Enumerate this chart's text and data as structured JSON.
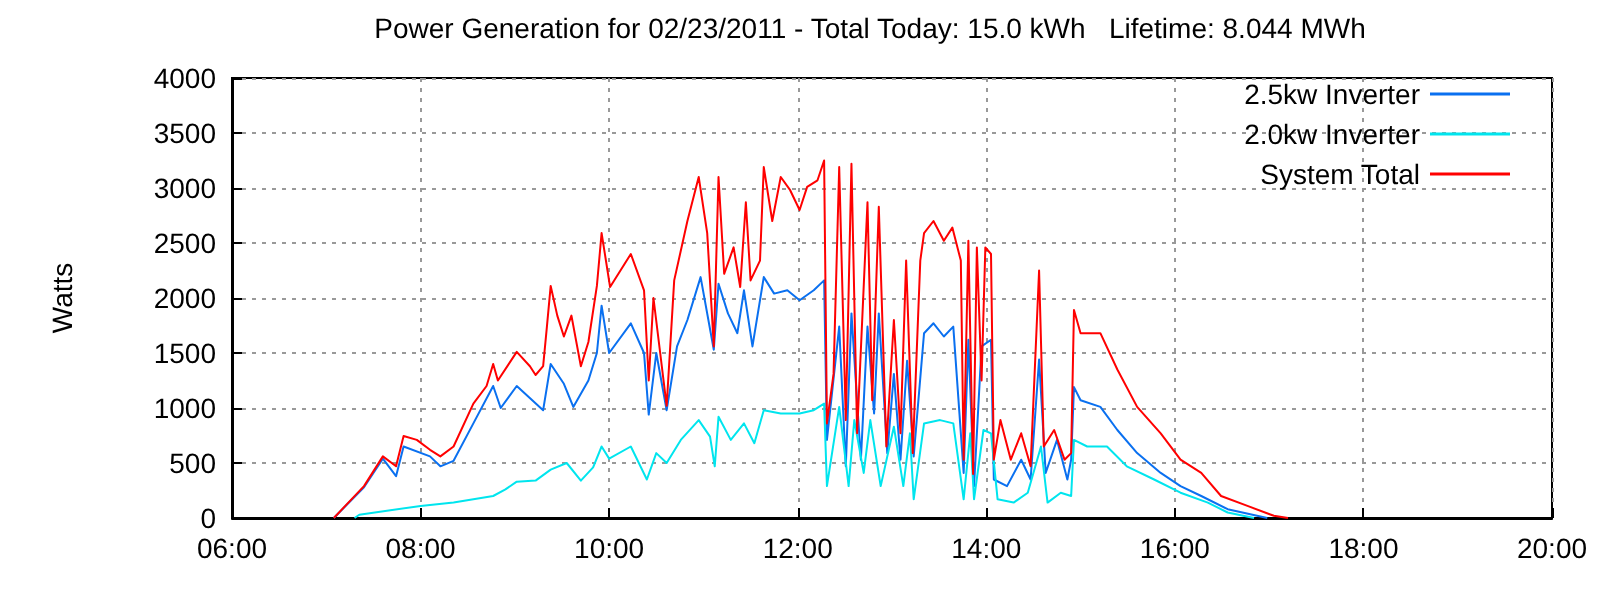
{
  "chart_data": {
    "type": "line",
    "title": "Power Generation for 02/23/2011 - Total Today: 15.0 kWh   Lifetime: 8.044 MWh",
    "ylabel": "Watts",
    "xlim": [
      6,
      20
    ],
    "xticks": [
      {
        "value": 6,
        "label": "06:00"
      },
      {
        "value": 8,
        "label": "08:00"
      },
      {
        "value": 10,
        "label": "10:00"
      },
      {
        "value": 12,
        "label": "12:00"
      },
      {
        "value": 14,
        "label": "14:00"
      },
      {
        "value": 16,
        "label": "16:00"
      },
      {
        "value": 18,
        "label": "18:00"
      },
      {
        "value": 20,
        "label": "20:00"
      }
    ],
    "ylim": [
      0,
      4000
    ],
    "yticks": [
      0,
      500,
      1000,
      1500,
      2000,
      2500,
      3000,
      3500,
      4000
    ],
    "grid": true,
    "legend": "top right",
    "marker": "none",
    "series": [
      {
        "name": "2.5kw Inverter",
        "color": "#0a70f0",
        "x": [
          7.08,
          7.4,
          7.6,
          7.74,
          7.82,
          8.1,
          8.21,
          8.35,
          8.56,
          8.77,
          8.85,
          9.02,
          9.3,
          9.38,
          9.52,
          9.62,
          9.78,
          9.87,
          9.92,
          10.0,
          10.23,
          10.37,
          10.42,
          10.5,
          10.61,
          10.72,
          10.83,
          10.97,
          11.11,
          11.16,
          11.26,
          11.36,
          11.43,
          11.52,
          11.64,
          11.75,
          11.89,
          12.02,
          12.17,
          12.28,
          12.31,
          12.44,
          12.51,
          12.57,
          12.67,
          12.74,
          12.81,
          12.86,
          12.95,
          13.02,
          13.09,
          13.16,
          13.23,
          13.34,
          13.44,
          13.55,
          13.65,
          13.76,
          13.81,
          13.87,
          13.95,
          14.05,
          14.08,
          14.22,
          14.37,
          14.47,
          14.56,
          14.63,
          14.75,
          14.86,
          14.9,
          14.93,
          15.0,
          15.21,
          15.39,
          15.6,
          15.85,
          16.06,
          16.28,
          16.56,
          16.98
        ],
        "values": [
          0,
          280,
          540,
          380,
          650,
          560,
          470,
          520,
          860,
          1200,
          1000,
          1200,
          980,
          1400,
          1220,
          1010,
          1250,
          1500,
          1930,
          1500,
          1770,
          1500,
          940,
          1500,
          980,
          1560,
          1800,
          2190,
          1530,
          2130,
          1860,
          1680,
          2070,
          1560,
          2190,
          2040,
          2070,
          1980,
          2070,
          2160,
          710,
          1740,
          470,
          1860,
          530,
          1740,
          950,
          1860,
          590,
          1310,
          530,
          1430,
          560,
          1680,
          1770,
          1650,
          1740,
          410,
          1620,
          290,
          1560,
          1620,
          350,
          290,
          530,
          350,
          1440,
          410,
          710,
          350,
          530,
          1190,
          1070,
          1010,
          800,
          590,
          410,
          290,
          200,
          80,
          0
        ]
      },
      {
        "name": "2.0kw Inverter",
        "color": "#00e5ee",
        "x": [
          7.3,
          7.35,
          8.0,
          8.35,
          8.77,
          8.9,
          9.02,
          9.22,
          9.38,
          9.55,
          9.7,
          9.83,
          9.92,
          10.0,
          10.23,
          10.4,
          10.5,
          10.61,
          10.76,
          10.95,
          11.07,
          11.12,
          11.16,
          11.29,
          11.43,
          11.54,
          11.64,
          11.82,
          12.02,
          12.17,
          12.28,
          12.31,
          12.44,
          12.54,
          12.6,
          12.7,
          12.77,
          12.88,
          13.02,
          13.12,
          13.19,
          13.23,
          13.34,
          13.51,
          13.65,
          13.76,
          13.83,
          13.87,
          13.97,
          14.05,
          14.12,
          14.29,
          14.44,
          14.58,
          14.65,
          14.79,
          14.9,
          14.93,
          15.07,
          15.28,
          15.49,
          15.78,
          16.06,
          16.35,
          16.56,
          16.84
        ],
        "values": [
          0,
          30,
          110,
          140,
          200,
          260,
          330,
          340,
          440,
          500,
          340,
          460,
          650,
          540,
          650,
          350,
          590,
          500,
          710,
          890,
          740,
          470,
          920,
          710,
          860,
          680,
          980,
          950,
          950,
          980,
          1040,
          290,
          1010,
          290,
          890,
          410,
          890,
          290,
          830,
          290,
          770,
          170,
          860,
          890,
          860,
          170,
          770,
          170,
          800,
          770,
          170,
          140,
          230,
          650,
          140,
          230,
          200,
          710,
          650,
          650,
          470,
          350,
          230,
          140,
          50,
          0
        ]
      },
      {
        "name": "System Total",
        "color": "#ff0000",
        "x": [
          7.08,
          7.4,
          7.6,
          7.74,
          7.82,
          7.96,
          8.1,
          8.21,
          8.35,
          8.56,
          8.7,
          8.77,
          8.82,
          9.02,
          9.16,
          9.22,
          9.3,
          9.34,
          9.38,
          9.45,
          9.52,
          9.6,
          9.7,
          9.78,
          9.87,
          9.92,
          10.01,
          10.23,
          10.37,
          10.42,
          10.47,
          10.61,
          10.69,
          10.83,
          10.95,
          11.04,
          11.11,
          11.16,
          11.22,
          11.32,
          11.39,
          11.45,
          11.5,
          11.6,
          11.64,
          11.73,
          11.82,
          11.92,
          12.02,
          12.1,
          12.21,
          12.28,
          12.31,
          12.38,
          12.44,
          12.51,
          12.57,
          12.63,
          12.74,
          12.79,
          12.86,
          12.94,
          13.02,
          13.09,
          13.15,
          13.22,
          13.3,
          13.34,
          13.44,
          13.55,
          13.64,
          13.73,
          13.76,
          13.81,
          13.86,
          13.9,
          13.95,
          13.99,
          14.05,
          14.08,
          14.15,
          14.26,
          14.37,
          14.47,
          14.56,
          14.61,
          14.72,
          14.83,
          14.9,
          14.93,
          15.0,
          15.21,
          15.39,
          15.6,
          15.85,
          16.06,
          16.28,
          16.49,
          16.77,
          17.05,
          17.2
        ],
        "values": [
          0,
          290,
          560,
          470,
          745,
          710,
          620,
          560,
          650,
          1040,
          1200,
          1400,
          1250,
          1510,
          1380,
          1300,
          1380,
          1740,
          2110,
          1840,
          1650,
          1840,
          1380,
          1600,
          2110,
          2590,
          2100,
          2400,
          2070,
          1250,
          2000,
          1020,
          2160,
          2700,
          3100,
          2590,
          1560,
          3100,
          2220,
          2460,
          2100,
          2870,
          2160,
          2340,
          3190,
          2700,
          3100,
          2980,
          2800,
          3010,
          3070,
          3250,
          860,
          1310,
          3190,
          890,
          3220,
          770,
          2870,
          1070,
          2830,
          650,
          1800,
          770,
          2340,
          590,
          2340,
          2590,
          2700,
          2520,
          2640,
          2340,
          530,
          2520,
          400,
          2460,
          1250,
          2460,
          2400,
          530,
          890,
          530,
          770,
          470,
          2250,
          650,
          800,
          530,
          590,
          1890,
          1680,
          1680,
          1350,
          1010,
          770,
          530,
          410,
          200,
          110,
          20,
          0
        ]
      }
    ]
  }
}
